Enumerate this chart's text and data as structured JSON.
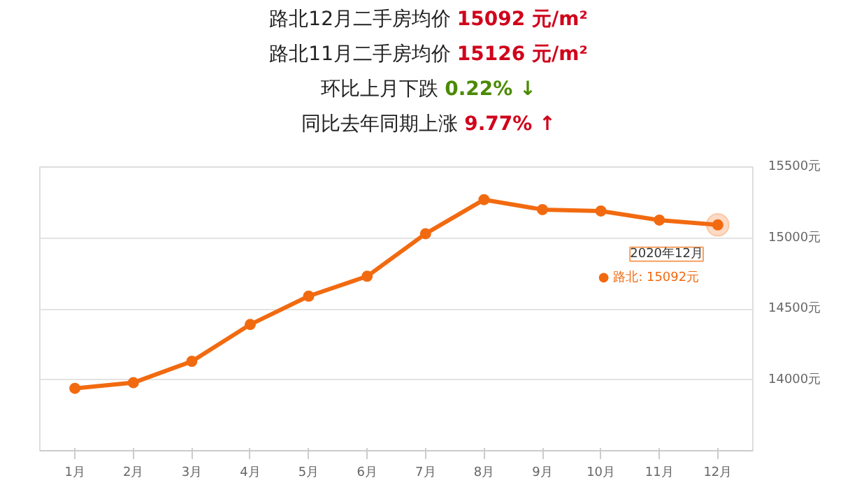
{
  "chart_data": {
    "type": "line",
    "title": "路北12月二手房均价 15092 元/m²",
    "subtitle": "路北11月二手房均价 15126 元/m²",
    "annotations": [
      "环比上月下跌 0.22% ↓",
      "同比去年同期上涨 9.77% ↑",
      {
        "text": "2020年12月\n● 路北:  15092元",
        "x": "12月",
        "y": 15092
      }
    ],
    "categories": [
      "1月",
      "2月",
      "3月",
      "4月",
      "5月",
      "6月",
      "7月",
      "8月",
      "9月",
      "10月",
      "11月",
      "12月"
    ],
    "series": [
      {
        "color": "#f26a10",
        "values": [
          13940,
          13980,
          14130,
          14390,
          14590,
          14730,
          15030,
          15270,
          15200,
          15190,
          15126,
          15092
        ]
      }
    ],
    "ylim": [
      13500,
      15500
    ],
    "yticks": [
      {
        "value": 14000,
        "label": "14000元"
      },
      {
        "value": 14500,
        "label": "14500元"
      },
      {
        "value": 15000,
        "label": "15000元"
      },
      {
        "value": 15500,
        "label": "15500元"
      }
    ],
    "grid": "y",
    "marker": "circle",
    "line_style": "solid"
  }
}
